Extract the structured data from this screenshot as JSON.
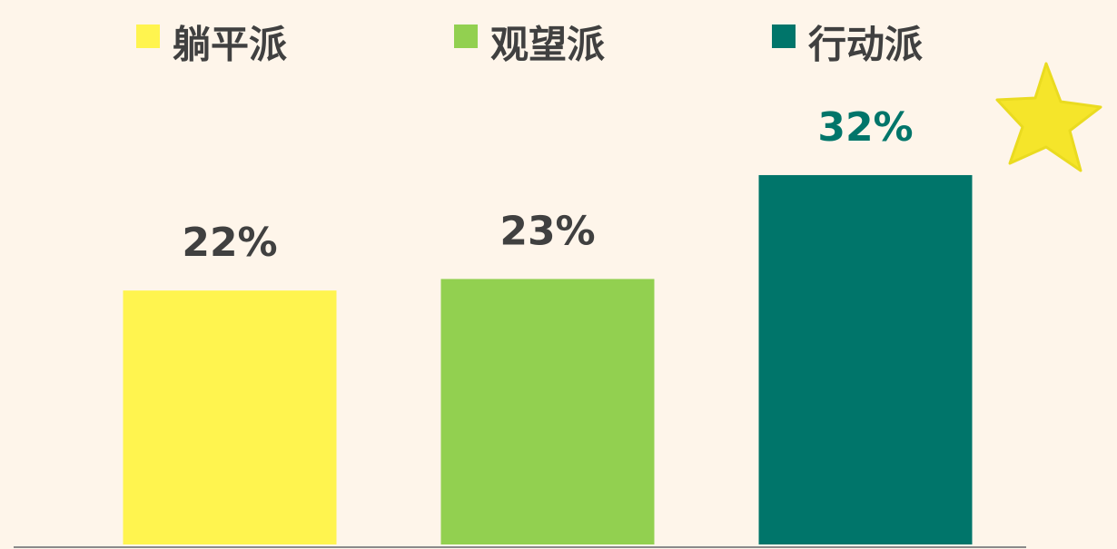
{
  "chart_data": {
    "type": "bar",
    "categories": [
      "躺平派",
      "观望派",
      "行动派"
    ],
    "values": [
      22,
      23,
      32
    ],
    "value_labels": [
      "22%",
      "23%",
      "32%"
    ],
    "colors": [
      "#fff44f",
      "#92d050",
      "#00756a"
    ],
    "value_label_colors": [
      "#404040",
      "#404040",
      "#00756a"
    ]
  }
}
